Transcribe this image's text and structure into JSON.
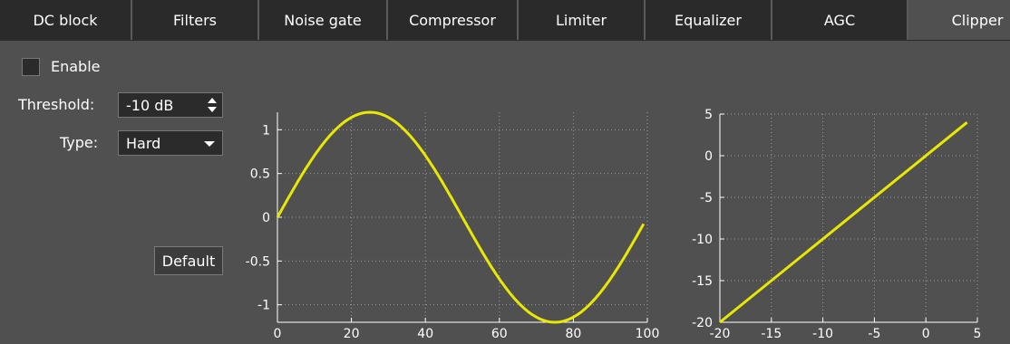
{
  "tabs": [
    {
      "label": "DC block",
      "active": false
    },
    {
      "label": "Filters",
      "active": false
    },
    {
      "label": "Noise gate",
      "active": false
    },
    {
      "label": "Compressor",
      "active": false
    },
    {
      "label": "Limiter",
      "active": false
    },
    {
      "label": "Equalizer",
      "active": false
    },
    {
      "label": "AGC",
      "active": false
    },
    {
      "label": "Clipper",
      "active": true
    }
  ],
  "controls": {
    "enable_label": "Enable",
    "enable_checked": false,
    "threshold_label": "Threshold:",
    "threshold_value": "-10 dB",
    "type_label": "Type:",
    "type_value": "Hard",
    "default_button": "Default"
  },
  "colors": {
    "background": "#505050",
    "curve": "#e8e800",
    "grid": "#9a9a9a"
  },
  "chart_data": [
    {
      "type": "line",
      "title": "",
      "xlabel": "",
      "ylabel": "",
      "xlim": [
        0,
        100
      ],
      "ylim": [
        -1.2,
        1.2
      ],
      "x_ticks": [
        0,
        20,
        40,
        60,
        80,
        100
      ],
      "y_ticks": [
        -1,
        -0.5,
        0,
        0.5,
        1
      ],
      "y_tick_labels": [
        "-1",
        "-0.5",
        "0",
        "0.5",
        "1"
      ],
      "grid": true,
      "series": [
        {
          "x": [
            0,
            5,
            10,
            15,
            20,
            25,
            30,
            35,
            40,
            45,
            50,
            55,
            60,
            65,
            70,
            75,
            80,
            85,
            90,
            95,
            99
          ],
          "y": [
            0,
            0.371,
            0.705,
            0.971,
            1.141,
            1.2,
            1.141,
            0.971,
            0.705,
            0.371,
            0,
            -0.371,
            -0.705,
            -0.971,
            -1.141,
            -1.2,
            -1.141,
            -0.971,
            -0.705,
            -0.371,
            -0.075
          ]
        }
      ]
    },
    {
      "type": "line",
      "title": "",
      "xlabel": "",
      "ylabel": "",
      "xlim": [
        -20,
        5
      ],
      "ylim": [
        -20,
        5
      ],
      "x_ticks": [
        -20,
        -15,
        -10,
        -5,
        0,
        5
      ],
      "y_ticks": [
        -20,
        -15,
        -10,
        -5,
        0,
        5
      ],
      "grid": true,
      "series": [
        {
          "x": [
            -20,
            4
          ],
          "y": [
            -20,
            4
          ]
        }
      ]
    }
  ]
}
